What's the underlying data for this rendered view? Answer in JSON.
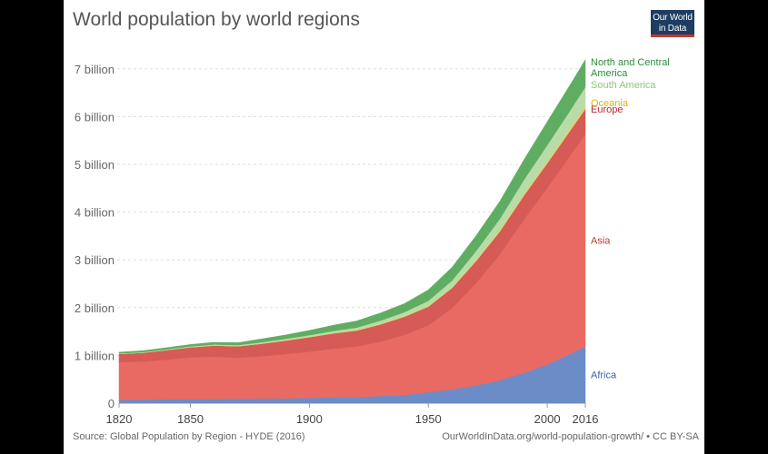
{
  "header": {
    "title": "World population by world regions",
    "logo_line1": "Our World",
    "logo_line2": "in Data"
  },
  "footer": {
    "source": "Source: Global Population by Region - HYDE (2016)",
    "url": "OurWorldInData.org/world-population-growth/ • CC BY-SA"
  },
  "chart_data": {
    "type": "area",
    "stacked": true,
    "title": "World population by world regions",
    "x": [
      1820,
      1830,
      1840,
      1850,
      1860,
      1870,
      1880,
      1890,
      1900,
      1910,
      1920,
      1930,
      1940,
      1950,
      1960,
      1970,
      1980,
      1990,
      2000,
      2010,
      2016
    ],
    "x_ticks": [
      1820,
      1850,
      1900,
      1950,
      2000,
      2016
    ],
    "y_ticks": [
      {
        "value": 0,
        "label": "0"
      },
      {
        "value": 1,
        "label": "1 billion"
      },
      {
        "value": 2,
        "label": "2 billion"
      },
      {
        "value": 3,
        "label": "3 billion"
      },
      {
        "value": 4,
        "label": "4 billion"
      },
      {
        "value": 5,
        "label": "5 billion"
      },
      {
        "value": 6,
        "label": "6 billion"
      },
      {
        "value": 7,
        "label": "7 billion"
      }
    ],
    "ylim": [
      0,
      7.3
    ],
    "xlim": [
      1820,
      2016
    ],
    "grid": true,
    "legend": "right (labels at series end)",
    "series": [
      {
        "name": "Africa",
        "color": "#6b8cc7",
        "label_color": "#3a5fa8",
        "values": [
          0.07,
          0.075,
          0.08,
          0.08,
          0.085,
          0.09,
          0.095,
          0.1,
          0.11,
          0.12,
          0.13,
          0.15,
          0.17,
          0.23,
          0.29,
          0.37,
          0.48,
          0.63,
          0.81,
          1.04,
          1.19
        ]
      },
      {
        "name": "Asia",
        "color": "#e86a62",
        "label_color": "#c0392b",
        "values": [
          0.79,
          0.8,
          0.83,
          0.88,
          0.89,
          0.86,
          0.89,
          0.93,
          0.97,
          1.02,
          1.06,
          1.14,
          1.26,
          1.4,
          1.7,
          2.14,
          2.63,
          3.2,
          3.7,
          4.17,
          4.44
        ]
      },
      {
        "name": "Europe",
        "color": "#d65a55",
        "label_color": "#b5283a",
        "values": [
          0.17,
          0.18,
          0.2,
          0.21,
          0.23,
          0.24,
          0.26,
          0.28,
          0.3,
          0.32,
          0.33,
          0.36,
          0.38,
          0.39,
          0.42,
          0.46,
          0.48,
          0.5,
          0.51,
          0.52,
          0.53
        ]
      },
      {
        "name": "Oceania",
        "color": "#f0d24a",
        "label_color": "#e2b400",
        "values": [
          0.002,
          0.002,
          0.002,
          0.002,
          0.003,
          0.003,
          0.003,
          0.004,
          0.005,
          0.006,
          0.008,
          0.01,
          0.011,
          0.013,
          0.016,
          0.019,
          0.023,
          0.027,
          0.031,
          0.036,
          0.039
        ]
      },
      {
        "name": "South America",
        "color": "#b9dba8",
        "label_color": "#8cc67a",
        "values": [
          0.01,
          0.012,
          0.015,
          0.017,
          0.02,
          0.024,
          0.028,
          0.033,
          0.038,
          0.045,
          0.055,
          0.07,
          0.085,
          0.11,
          0.14,
          0.19,
          0.24,
          0.3,
          0.35,
          0.39,
          0.42
        ]
      },
      {
        "name": "North and Central America",
        "color": "#5fad63",
        "label_color": "#2e8b3a",
        "values": [
          0.025,
          0.03,
          0.035,
          0.04,
          0.045,
          0.05,
          0.07,
          0.08,
          0.1,
          0.12,
          0.14,
          0.16,
          0.18,
          0.23,
          0.28,
          0.32,
          0.37,
          0.42,
          0.49,
          0.54,
          0.57
        ]
      }
    ]
  }
}
